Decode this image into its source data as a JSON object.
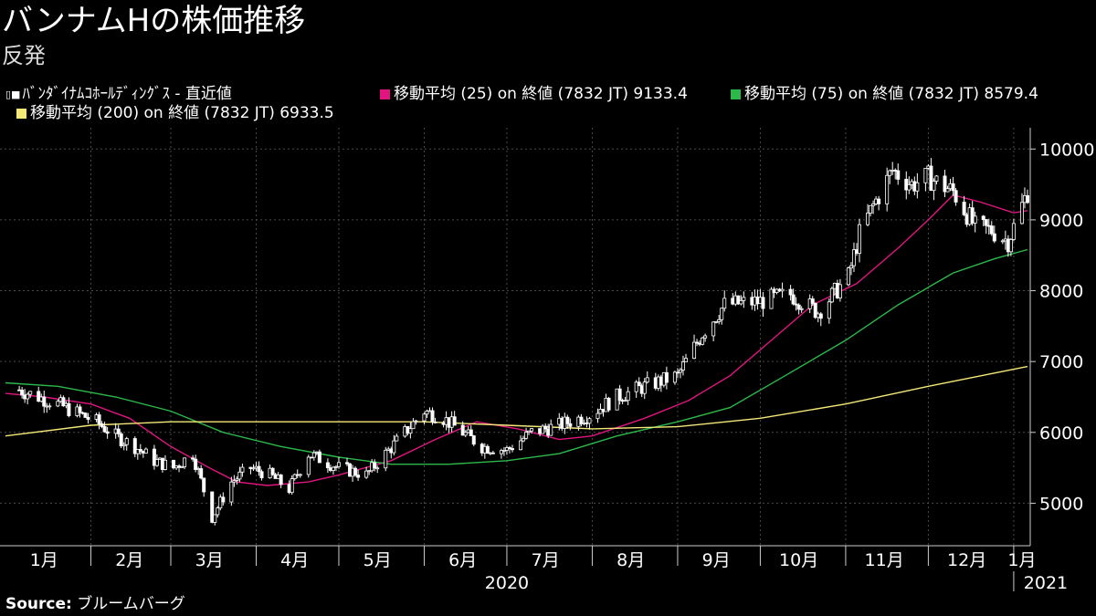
{
  "header": {
    "title": "バンナムHの株価推移",
    "subtitle": "反発"
  },
  "legend": {
    "price": "ﾊﾞﾝﾀﾞｲﾅﾑｺﾎｰﾙﾃﾞｨﾝｸﾞｽ - 直近値",
    "ma25": "移動平均 (25)  on 終値 (7832 JT) 9133.4",
    "ma75": "移動平均 (75)  on 終値 (7832 JT) 8579.4",
    "ma200": "移動平均 (200)  on 終値 (7832 JT) 6933.5",
    "price_icon": "candlestick-icon"
  },
  "colors": {
    "background": "#000000",
    "price": "#ffffff",
    "ma25": "#e0157f",
    "ma75": "#2db84a",
    "ma200": "#f4e878",
    "grid": "#4a4a4a"
  },
  "source": {
    "label": "Source:",
    "name": "ブルームバーグ"
  },
  "chart_data": {
    "type": "line",
    "title": "バンナムHの株価推移",
    "subtitle": "反発",
    "xlabel": "",
    "ylabel": "",
    "ylim": [
      4400,
      10300
    ],
    "xlim": [
      "2019-12-30",
      "2021-01-07"
    ],
    "y_ticks": [
      5000,
      6000,
      7000,
      8000,
      9000,
      10000
    ],
    "month_ticks": [
      {
        "label": "1月",
        "date": "2020-01-15"
      },
      {
        "label": "2月",
        "date": "2020-02-15"
      },
      {
        "label": "3月",
        "date": "2020-03-15"
      },
      {
        "label": "4月",
        "date": "2020-04-15"
      },
      {
        "label": "5月",
        "date": "2020-05-15"
      },
      {
        "label": "6月",
        "date": "2020-06-15"
      },
      {
        "label": "7月",
        "date": "2020-07-15"
      },
      {
        "label": "8月",
        "date": "2020-08-15"
      },
      {
        "label": "9月",
        "date": "2020-09-15"
      },
      {
        "label": "10月",
        "date": "2020-10-15"
      },
      {
        "label": "11月",
        "date": "2020-11-15"
      },
      {
        "label": "12月",
        "date": "2020-12-15"
      },
      {
        "label": "1月",
        "date": "2021-01-04"
      }
    ],
    "year_labels": [
      {
        "label": "2020",
        "date": "2020-07-01"
      },
      {
        "label": "2021",
        "date": "2021-01-04"
      }
    ],
    "grid": true,
    "legend_position": "top-left",
    "price_series": {
      "name": "ﾊﾞﾝﾀﾞｲﾅﾑｺﾎｰﾙﾃﾞｨﾝｸﾞｽ - 直近値",
      "style": "candlestick",
      "dates": [
        "2020-01-06",
        "2020-01-20",
        "2020-02-03",
        "2020-02-10",
        "2020-02-17",
        "2020-02-24",
        "2020-03-02",
        "2020-03-09",
        "2020-03-16",
        "2020-03-23",
        "2020-03-30",
        "2020-04-06",
        "2020-04-13",
        "2020-04-20",
        "2020-05-01",
        "2020-05-11",
        "2020-05-18",
        "2020-05-25",
        "2020-06-01",
        "2020-06-08",
        "2020-06-15",
        "2020-06-22",
        "2020-07-01",
        "2020-07-10",
        "2020-07-20",
        "2020-07-31",
        "2020-08-10",
        "2020-08-20",
        "2020-09-01",
        "2020-09-10",
        "2020-09-18",
        "2020-10-01",
        "2020-10-12",
        "2020-10-22",
        "2020-11-02",
        "2020-11-06",
        "2020-11-11",
        "2020-11-18",
        "2020-11-25",
        "2020-12-01",
        "2020-12-10",
        "2020-12-18",
        "2020-12-24",
        "2020-12-30",
        "2021-01-06"
      ],
      "close": [
        6600,
        6400,
        6150,
        5950,
        5800,
        5600,
        5500,
        5700,
        4800,
        5300,
        5500,
        5400,
        5200,
        5700,
        5500,
        5400,
        5700,
        6000,
        6300,
        6200,
        6000,
        5800,
        5750,
        6000,
        6100,
        6250,
        6500,
        6650,
        6800,
        7400,
        7800,
        7850,
        7950,
        7700,
        8200,
        8800,
        9200,
        9700,
        9500,
        9600,
        9400,
        8900,
        8850,
        8700,
        9400
      ]
    },
    "series": [
      {
        "name": "移動平均 (25)  on 終値 (7832 JT) 9133.4",
        "color": "#e0157f",
        "x": [
          "2020-01-01",
          "2020-01-15",
          "2020-02-01",
          "2020-02-15",
          "2020-03-01",
          "2020-03-15",
          "2020-03-25",
          "2020-04-05",
          "2020-04-20",
          "2020-05-01",
          "2020-05-20",
          "2020-06-05",
          "2020-06-20",
          "2020-07-05",
          "2020-07-20",
          "2020-08-01",
          "2020-08-20",
          "2020-09-05",
          "2020-09-20",
          "2020-10-05",
          "2020-10-20",
          "2020-11-05",
          "2020-11-20",
          "2020-12-01",
          "2020-12-10",
          "2020-12-20",
          "2021-01-01",
          "2021-01-06"
        ],
        "values": [
          6550,
          6500,
          6400,
          6200,
          5800,
          5500,
          5300,
          5250,
          5300,
          5400,
          5600,
          5900,
          6150,
          6050,
          5900,
          5950,
          6200,
          6450,
          6800,
          7300,
          7800,
          8100,
          8600,
          9000,
          9350,
          9250,
          9100,
          9130
        ]
      },
      {
        "name": "移動平均 (75)  on 終値 (7832 JT) 8579.4",
        "color": "#2db84a",
        "x": [
          "2020-01-01",
          "2020-01-20",
          "2020-02-10",
          "2020-03-01",
          "2020-03-20",
          "2020-04-10",
          "2020-05-01",
          "2020-05-20",
          "2020-06-10",
          "2020-07-01",
          "2020-07-20",
          "2020-08-10",
          "2020-09-01",
          "2020-09-20",
          "2020-10-10",
          "2020-11-01",
          "2020-11-20",
          "2020-12-10",
          "2020-12-25",
          "2021-01-06"
        ],
        "values": [
          6700,
          6650,
          6500,
          6300,
          6000,
          5800,
          5650,
          5550,
          5550,
          5600,
          5700,
          5950,
          6150,
          6350,
          6800,
          7300,
          7800,
          8250,
          8450,
          8580
        ]
      },
      {
        "name": "移動平均 (200)  on 終値 (7832 JT) 6933.5",
        "color": "#f4e878",
        "x": [
          "2020-01-01",
          "2020-02-01",
          "2020-03-01",
          "2020-04-01",
          "2020-05-01",
          "2020-06-01",
          "2020-07-01",
          "2020-08-01",
          "2020-09-01",
          "2020-10-01",
          "2020-11-01",
          "2020-12-01",
          "2021-01-06"
        ],
        "values": [
          5950,
          6100,
          6150,
          6150,
          6150,
          6150,
          6100,
          6050,
          6080,
          6200,
          6400,
          6650,
          6930
        ]
      }
    ]
  }
}
